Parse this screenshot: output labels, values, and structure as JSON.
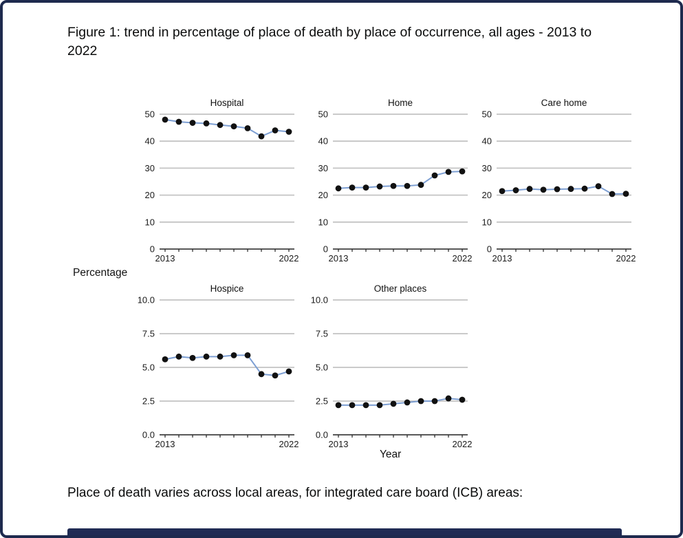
{
  "figure": {
    "title": "Figure 1: trend in percentage of place of death by place of occurrence, all ages - 2013 to 2022",
    "ylabel": "Percentage",
    "xlabel": "Year",
    "line_color": "#7d9fd3",
    "point_color": "#111111",
    "gridline_color": "#c3c3c3",
    "frame_color": "#1e2a4e"
  },
  "body": {
    "paragraph": "Place of death varies across local areas, for integrated care board (ICB) areas:"
  },
  "chart_data": {
    "type": "line",
    "x": [
      2013,
      2014,
      2015,
      2016,
      2017,
      2018,
      2019,
      2020,
      2021,
      2022
    ],
    "x_tick_labels_shown": [
      "2013",
      "2022"
    ],
    "grid": "horizontal",
    "layout": "small-multiples 3x2",
    "charts": [
      {
        "title": "Hospital",
        "values": [
          48.0,
          47.2,
          46.8,
          46.6,
          46.0,
          45.5,
          44.8,
          41.8,
          44.0,
          43.5
        ],
        "ylim": [
          0,
          50
        ],
        "yticks": [
          0,
          10,
          20,
          30,
          40,
          50
        ],
        "ytick_labels": [
          "0",
          "10",
          "20",
          "30",
          "40",
          "50"
        ]
      },
      {
        "title": "Home",
        "values": [
          22.5,
          22.8,
          22.8,
          23.2,
          23.4,
          23.4,
          23.8,
          27.3,
          28.6,
          28.8
        ],
        "ylim": [
          0,
          50
        ],
        "yticks": [
          0,
          10,
          20,
          30,
          40,
          50
        ],
        "ytick_labels": [
          "0",
          "10",
          "20",
          "30",
          "40",
          "50"
        ]
      },
      {
        "title": "Care home",
        "values": [
          21.5,
          21.8,
          22.3,
          22.0,
          22.2,
          22.3,
          22.4,
          23.3,
          20.4,
          20.5
        ],
        "ylim": [
          0,
          50
        ],
        "yticks": [
          0,
          10,
          20,
          30,
          40,
          50
        ],
        "ytick_labels": [
          "0",
          "10",
          "20",
          "30",
          "40",
          "50"
        ]
      },
      {
        "title": "Hospice",
        "values": [
          5.6,
          5.8,
          5.7,
          5.8,
          5.8,
          5.9,
          5.9,
          4.5,
          4.4,
          4.7
        ],
        "ylim": [
          0,
          10
        ],
        "yticks": [
          0,
          2.5,
          5,
          7.5,
          10
        ],
        "ytick_labels": [
          "0.0",
          "2.5",
          "5.0",
          "7.5",
          "10.0"
        ]
      },
      {
        "title": "Other places",
        "values": [
          2.2,
          2.2,
          2.2,
          2.2,
          2.3,
          2.4,
          2.5,
          2.5,
          2.7,
          2.6
        ],
        "ylim": [
          0,
          10
        ],
        "yticks": [
          0,
          2.5,
          5,
          7.5,
          10
        ],
        "ytick_labels": [
          "0.0",
          "2.5",
          "5.0",
          "7.5",
          "10.0"
        ]
      }
    ]
  }
}
